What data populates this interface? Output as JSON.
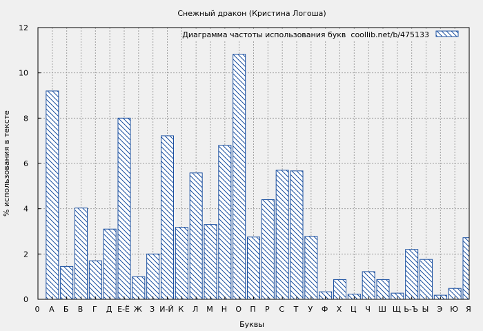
{
  "chart_data": {
    "type": "bar",
    "title": "Снежный дракон (Кристина Логоша)",
    "xlabel": "Буквы",
    "ylabel": "% использования в тексте",
    "ylim": [
      0,
      12
    ],
    "yticks": [
      "0",
      "2",
      "4",
      "6",
      "8",
      "10",
      "12"
    ],
    "grid": true,
    "legend_position": "top-right",
    "categories": [
      "0",
      "А",
      "Б",
      "В",
      "Г",
      "Д",
      "Е-Ё",
      "Ж",
      "З",
      "И-Й",
      "К",
      "Л",
      "М",
      "Н",
      "О",
      "П",
      "Р",
      "С",
      "Т",
      "У",
      "Ф",
      "Х",
      "Ц",
      "Ч",
      "Ш",
      "Щ",
      "Ь-Ъ",
      "Ы",
      "Э",
      "Ю",
      "Я"
    ],
    "series": [
      {
        "name": "Диаграмма частоты использования букв  coollib.net/b/475133",
        "values": [
          null,
          9.2,
          1.45,
          4.03,
          1.7,
          3.1,
          8.0,
          1.0,
          2.0,
          7.22,
          3.18,
          5.58,
          3.3,
          6.8,
          10.82,
          2.75,
          4.4,
          5.7,
          5.67,
          2.78,
          0.33,
          0.87,
          0.23,
          1.22,
          0.87,
          0.27,
          2.2,
          1.76,
          0.18,
          0.48,
          2.72
        ]
      }
    ],
    "colors": {
      "bar_stroke": "#1a4fa0",
      "background": "#f0f0f0",
      "grid": "#a0a0a0"
    }
  }
}
